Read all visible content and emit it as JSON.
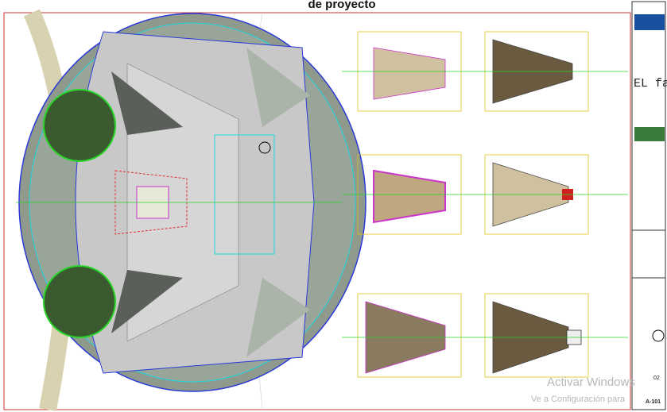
{
  "header": {
    "title_fragment": "de proyecto"
  },
  "title_block": {
    "project": "EL far",
    "sheet_number": "02",
    "drawing_code": "A-101"
  },
  "watermark": {
    "line1": "Activar Windows",
    "line2": "Ve a Configuración para"
  }
}
